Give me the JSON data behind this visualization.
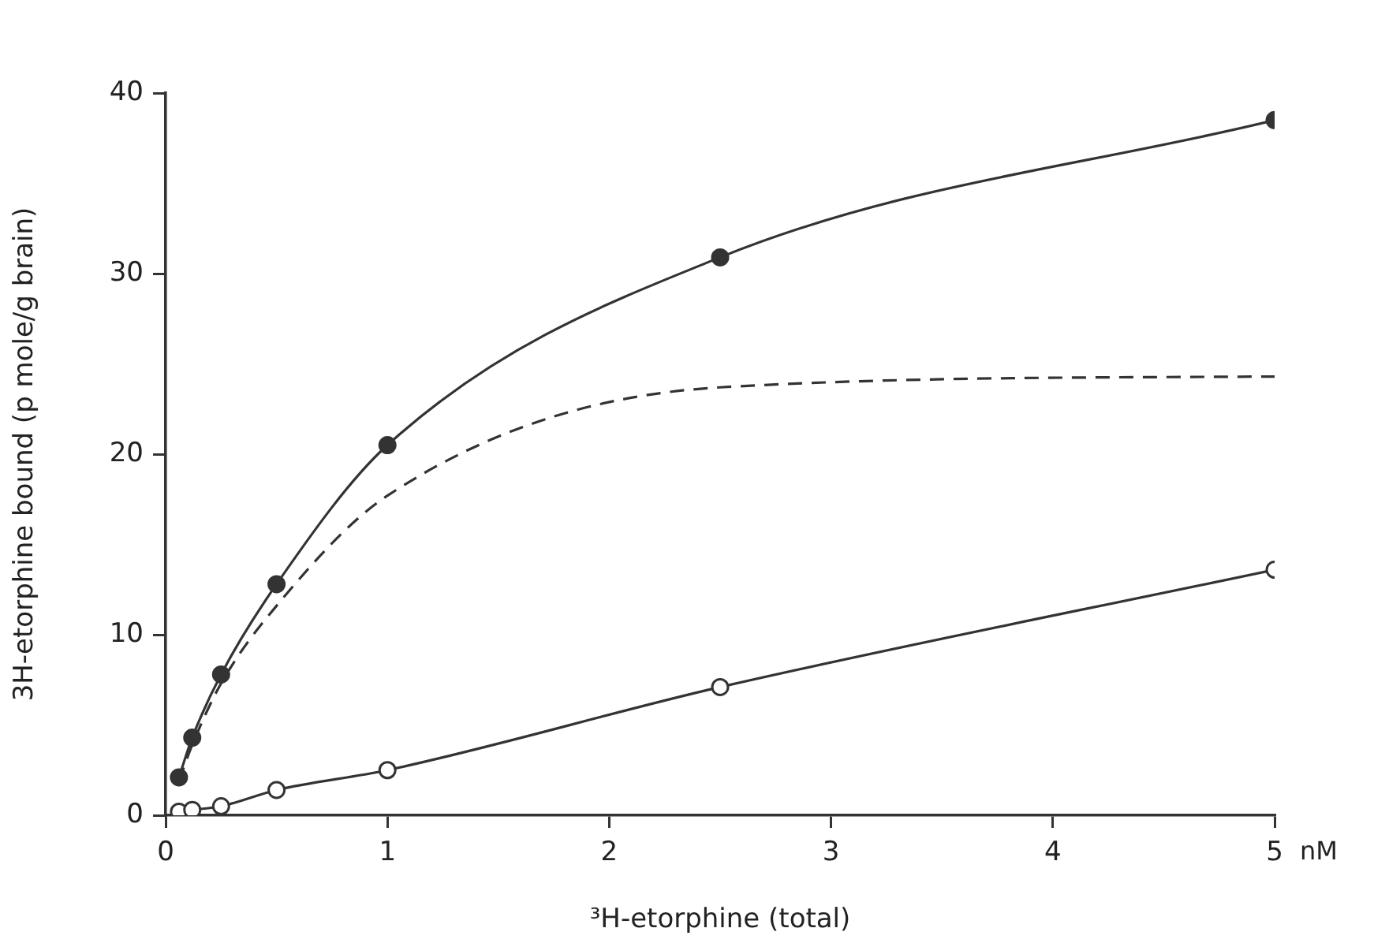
{
  "chart_data": {
    "type": "line",
    "xlabel": "³H-etorphine (total)",
    "ylabel": "3H-etorphine bound (p mole/g brain)",
    "xlim": [
      0,
      5
    ],
    "xticks": [
      0,
      1,
      2,
      3,
      4,
      5
    ],
    "ylim": [
      0,
      40
    ],
    "yticks": [
      0,
      10,
      20,
      30,
      40
    ],
    "grid": false,
    "legend": false,
    "annotations": [
      "nM"
    ],
    "series": [
      {
        "color": "#333333",
        "x": [
          0.06,
          0.12,
          0.25,
          0.5,
          1,
          2.5,
          5
        ],
        "values": [
          2.1,
          4.3,
          7.8,
          12.8,
          20.5,
          30.9,
          38.5
        ],
        "marker": "circle",
        "line_style": "solid"
      },
      {
        "color": "#333333",
        "x": [
          0.06,
          0.12,
          0.25,
          0.5,
          1,
          2.5,
          5
        ],
        "values": [
          1.9,
          3.9,
          7.3,
          11.6,
          17.7,
          23.7,
          24.3
        ],
        "marker": "none",
        "line_style": "dashed"
      },
      {
        "color": "#333333",
        "x": [
          0.06,
          0.12,
          0.25,
          0.5,
          1,
          2.5,
          5
        ],
        "values": [
          0.2,
          0.3,
          0.5,
          1.4,
          2.5,
          7.1,
          13.6
        ],
        "marker": "circle",
        "line_style": "solid"
      }
    ]
  }
}
